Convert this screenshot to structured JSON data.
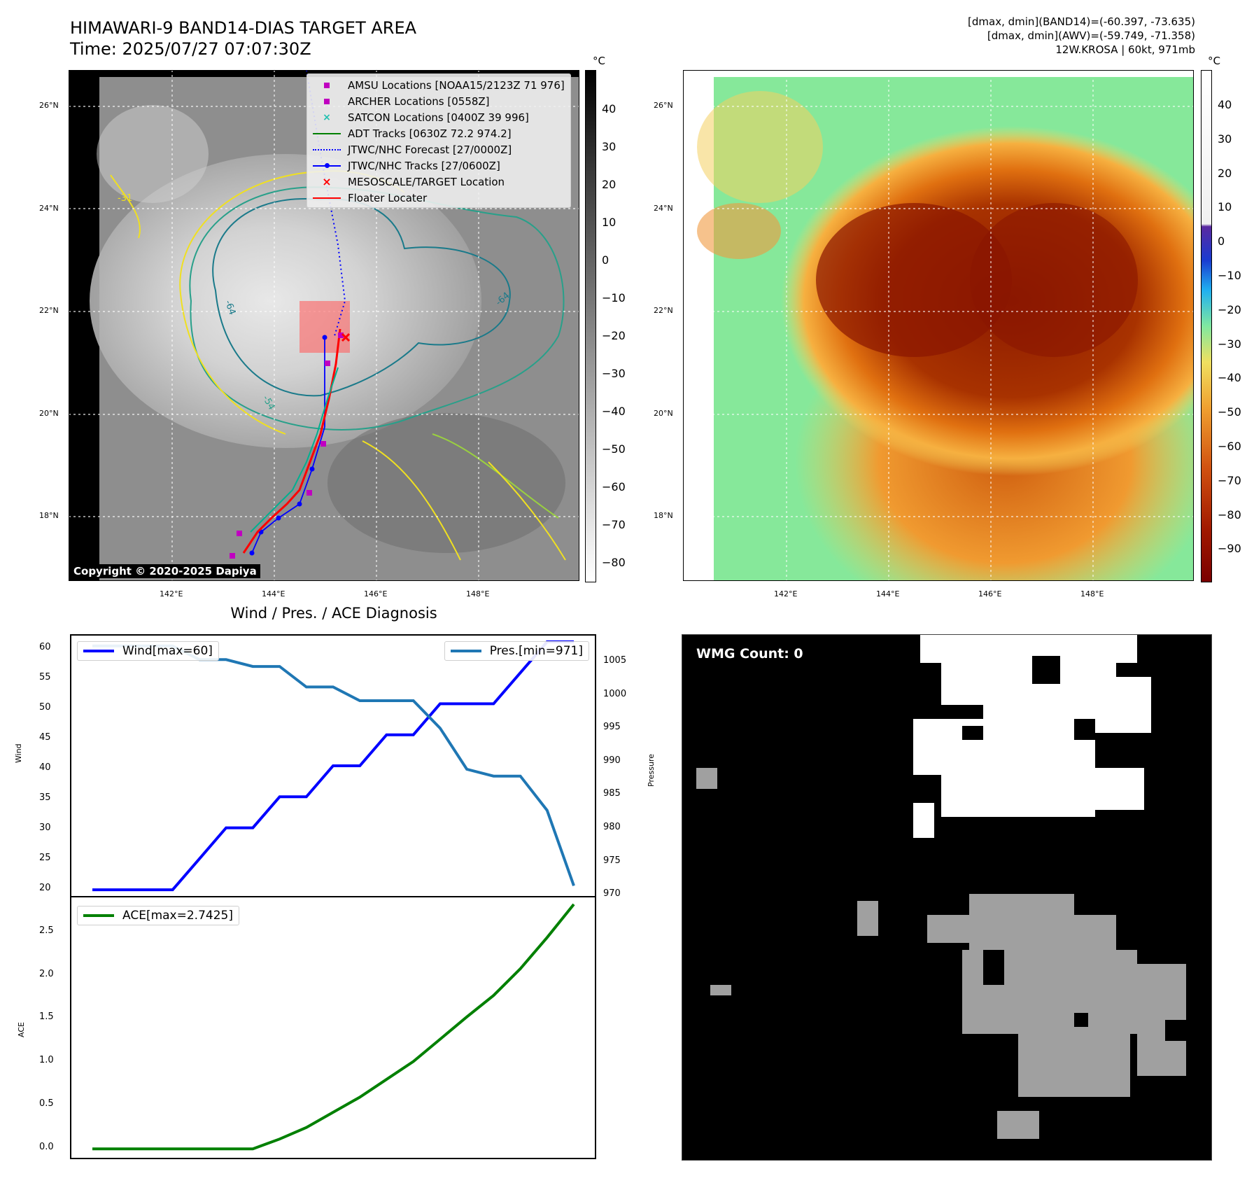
{
  "header": {
    "title_line1": "HIMAWARI-9 BAND14-DIAS TARGET AREA",
    "title_line2": "Time: 2025/07/27 07:07:30Z",
    "info_line1": "[dmax, dmin](BAND14)=(-60.397, -73.635)",
    "info_line2": "[dmax, dmin](AWV)=(-59.749, -71.358)",
    "info_line3": "12W.KROSA | 60kt, 971mb"
  },
  "map_axes": {
    "lat_ticks": [
      "26°N",
      "24°N",
      "22°N",
      "20°N",
      "18°N"
    ],
    "lon_ticks": [
      "142°E",
      "144°E",
      "146°E",
      "148°E"
    ]
  },
  "colorbar_ir": {
    "unit": "°C",
    "ticks": [
      "40",
      "30",
      "20",
      "10",
      "0",
      "−10",
      "−20",
      "−30",
      "−40",
      "−50",
      "−60",
      "−70",
      "−80"
    ]
  },
  "colorbar_awv": {
    "unit": "°C",
    "ticks": [
      "40",
      "30",
      "20",
      "10",
      "0",
      "−10",
      "−20",
      "−30",
      "−40",
      "−50",
      "−60",
      "−70",
      "−80",
      "−90"
    ]
  },
  "legend": {
    "items": [
      {
        "label": "AMSU Locations [NOAA15/2123Z 71 976]",
        "color": "#c000c0",
        "marker": "square"
      },
      {
        "label": "ARCHER Locations [0558Z]",
        "color": "#c000c0",
        "marker": "square"
      },
      {
        "label": "SATCON Locations [0400Z 39 996]",
        "color": "#20c0b0",
        "marker": "x"
      },
      {
        "label": "ADT Tracks [0630Z 72.2 974.2]",
        "color": "#008000",
        "marker": "line"
      },
      {
        "label": "JTWC/NHC Forecast [27/0000Z]",
        "color": "#0000ff",
        "marker": "dotted"
      },
      {
        "label": "JTWC/NHC Tracks [27/0600Z]",
        "color": "#0000ff",
        "marker": "line-dot"
      },
      {
        "label": "MESOSCALE/TARGET Location",
        "color": "#ff0000",
        "marker": "x"
      },
      {
        "label": "Floater Locater",
        "color": "#ff0000",
        "marker": "line"
      }
    ]
  },
  "contour_labels": [
    "-64",
    "-54",
    "-31",
    "-64"
  ],
  "copyright": "Copyright © 2020-2025 Dapiya",
  "diagnosis": {
    "title": "Wind / Pres. / ACE Diagnosis",
    "wind_axis_label": "Wind",
    "pressure_axis_label": "Pressure",
    "ace_axis_label": "ACE",
    "wind_legend": "Wind[max=60]",
    "pres_legend": "Pres.[min=971]",
    "ace_legend": "ACE[max=2.7425]",
    "wind_ticks": [
      "60",
      "55",
      "50",
      "45",
      "40",
      "35",
      "30",
      "25",
      "20"
    ],
    "pres_ticks": [
      "1005",
      "1000",
      "995",
      "990",
      "985",
      "980",
      "975",
      "970"
    ],
    "ace_ticks": [
      "2.5",
      "2.0",
      "1.5",
      "1.0",
      "0.5",
      "0.0"
    ]
  },
  "wmg": {
    "label": "WMG Count: 0"
  },
  "colors": {
    "wind": "#0000ff",
    "pressure": "#1f77b4",
    "ace": "#008000"
  },
  "chart_data": [
    {
      "type": "line",
      "title": "Wind / Pres. / ACE Diagnosis",
      "ylabel": "Wind",
      "ylim": [
        19,
        61
      ],
      "series": [
        {
          "name": "Wind[max=60]",
          "values": [
            20,
            20,
            20,
            20,
            25,
            30,
            30,
            35,
            35,
            40,
            40,
            45,
            45,
            50,
            50,
            50,
            55,
            60,
            60
          ]
        }
      ]
    },
    {
      "type": "line",
      "ylabel": "Pressure",
      "ylim": [
        969.5,
        1007.5
      ],
      "series": [
        {
          "name": "Pres.[min=971]",
          "values": [
            1006,
            1006,
            1006,
            1006,
            1004,
            1004,
            1003,
            1003,
            1000,
            1000,
            998,
            998,
            998,
            994,
            988,
            987,
            987,
            982,
            971
          ]
        }
      ]
    },
    {
      "type": "line",
      "ylabel": "ACE",
      "ylim": [
        -0.1,
        2.82
      ],
      "series": [
        {
          "name": "ACE[max=2.7425]",
          "values": [
            0,
            0,
            0,
            0,
            0,
            0,
            0,
            0.11,
            0.24,
            0.41,
            0.58,
            0.78,
            0.98,
            1.23,
            1.48,
            1.72,
            2.02,
            2.37,
            2.7425
          ]
        }
      ]
    }
  ]
}
